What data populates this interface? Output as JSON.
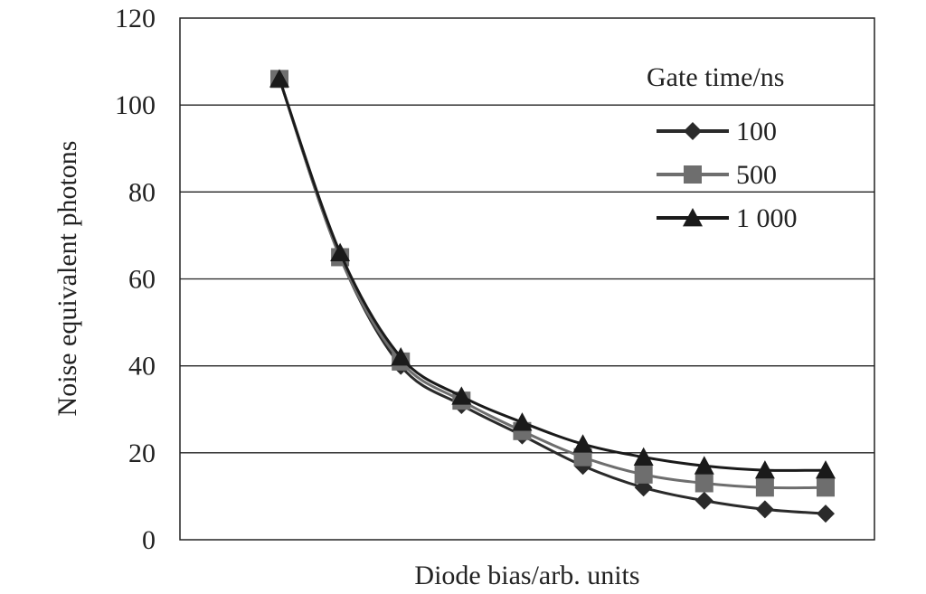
{
  "chart_data": {
    "type": "line",
    "xlabel": "Diode bias/arb. units",
    "ylabel": "Noise equivalent photons",
    "ylim": [
      0,
      120
    ],
    "yticks": [
      0,
      20,
      40,
      60,
      80,
      100,
      120
    ],
    "grid": "horizontal",
    "x": [
      1,
      2,
      3,
      4,
      5,
      6,
      7,
      8,
      9,
      10
    ],
    "legend": {
      "title": "Gate time/ns",
      "position": "top-right"
    },
    "series": [
      {
        "name": "100",
        "marker": "diamond",
        "color": "#2a2a2a",
        "values": [
          106,
          65,
          40,
          31,
          24,
          17,
          12,
          9,
          7,
          6
        ]
      },
      {
        "name": "500",
        "marker": "square",
        "color": "#6e6e6e",
        "values": [
          106,
          65,
          41,
          32,
          25,
          19,
          15,
          13,
          12,
          12
        ]
      },
      {
        "name": "1 000",
        "marker": "triangle",
        "color": "#1a1a1a",
        "values": [
          106,
          66,
          42,
          33,
          27,
          22,
          19,
          17,
          16,
          16
        ]
      }
    ]
  }
}
